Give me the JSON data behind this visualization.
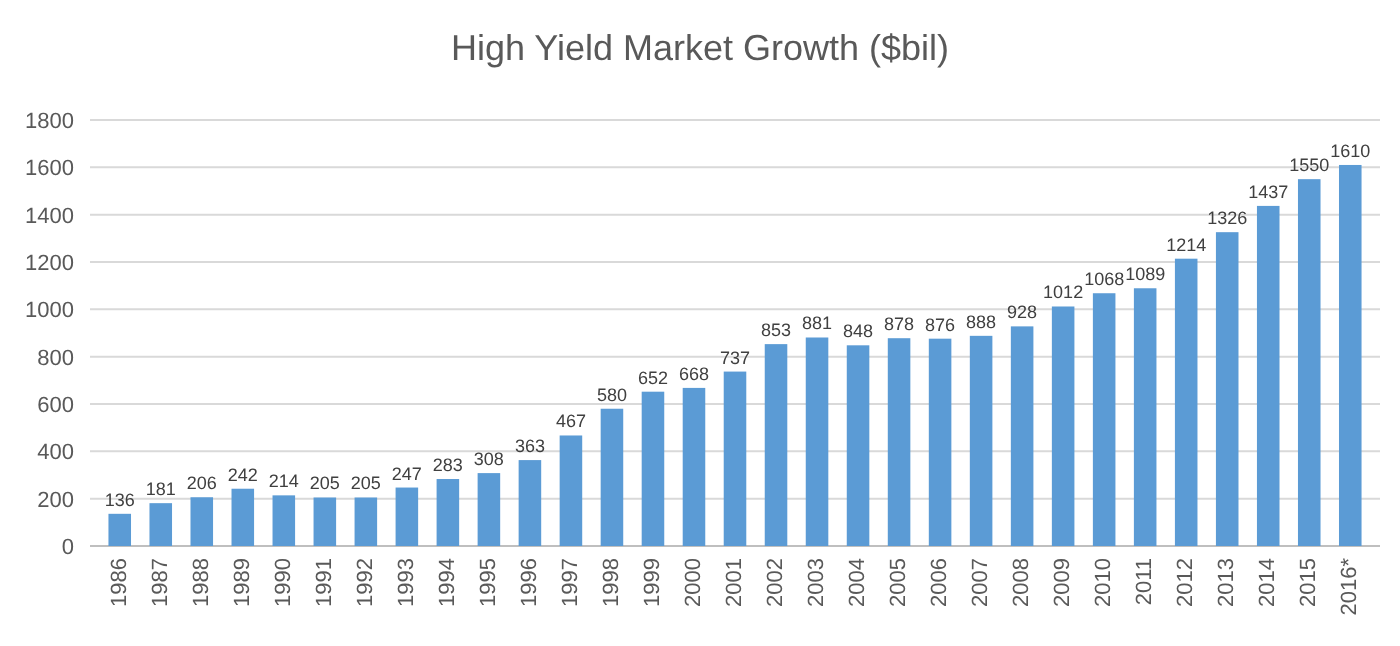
{
  "chart_data": {
    "type": "bar",
    "title": "High Yield Market Growth ($bil)",
    "categories": [
      "1986",
      "1987",
      "1988",
      "1989",
      "1990",
      "1991",
      "1992",
      "1993",
      "1994",
      "1995",
      "1996",
      "1997",
      "1998",
      "1999",
      "2000",
      "2001",
      "2002",
      "2003",
      "2004",
      "2005",
      "2006",
      "2007",
      "2008",
      "2009",
      "2010",
      "2011",
      "2012",
      "2013",
      "2014",
      "2015",
      "2016*"
    ],
    "values": [
      136,
      181,
      206,
      242,
      214,
      205,
      205,
      247,
      283,
      308,
      363,
      467,
      580,
      652,
      668,
      737,
      853,
      881,
      848,
      878,
      876,
      888,
      928,
      1012,
      1068,
      1089,
      1214,
      1326,
      1437,
      1550,
      1610
    ],
    "color": "#5b9bd5",
    "ylim": [
      0,
      1800
    ],
    "yticks": [
      0,
      200,
      400,
      600,
      800,
      1000,
      1200,
      1400,
      1600,
      1800
    ],
    "grid": "y",
    "data_labels": true
  }
}
